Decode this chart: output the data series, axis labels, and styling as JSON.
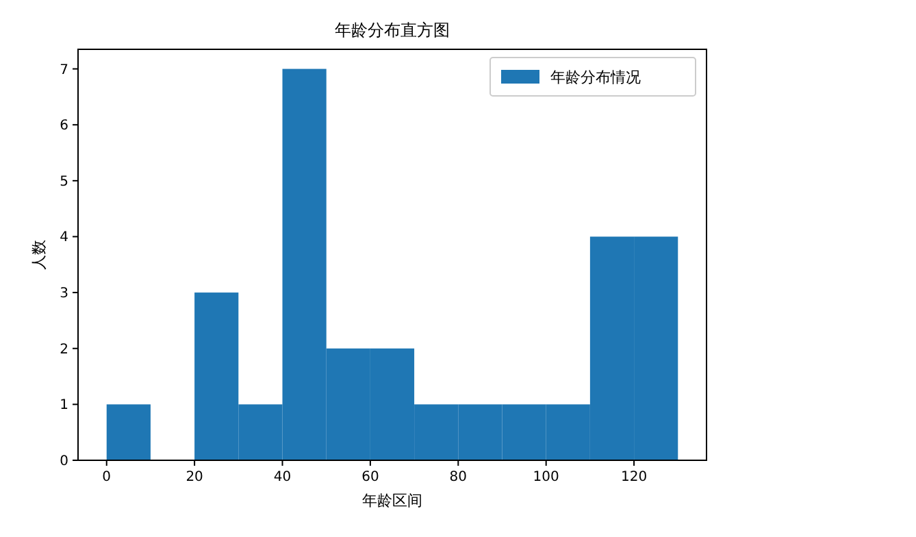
{
  "chart_data": {
    "type": "histogram",
    "title": "年龄分布直方图",
    "xlabel": "年龄区间",
    "ylabel": "人数",
    "bins": [
      0,
      10,
      20,
      30,
      40,
      50,
      60,
      70,
      80,
      90,
      100,
      110,
      120,
      130
    ],
    "series": [
      {
        "name": "年龄分布情况",
        "color": "#1f77b4",
        "values": [
          1,
          0,
          3,
          1,
          7,
          2,
          2,
          1,
          1,
          1,
          1,
          4,
          4
        ]
      }
    ],
    "xlim": [
      -6.5,
      136.5
    ],
    "xticks": [
      0,
      20,
      40,
      60,
      80,
      100,
      120
    ],
    "ylim": [
      0,
      7.35
    ],
    "yticks": [
      0,
      1,
      2,
      3,
      4,
      5,
      6,
      7
    ],
    "legend": "top right",
    "grid": false
  }
}
